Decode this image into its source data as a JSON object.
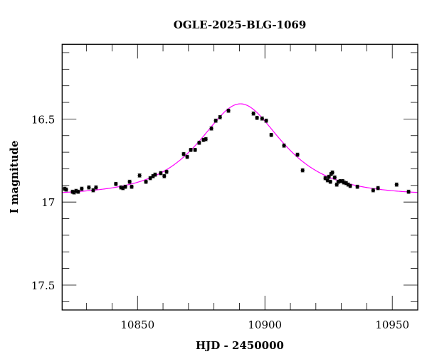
{
  "chart_data": {
    "type": "scatter",
    "title": "OGLE-2025-BLG-1069",
    "xlabel": "HJD - 2450000",
    "ylabel": "I magnitude",
    "xlim": [
      10820.4,
      10960
    ],
    "ylim": [
      16.05,
      17.65
    ],
    "y_inverted": true,
    "x_major_ticks": [
      10850,
      10900,
      10950
    ],
    "x_tick_labels": [
      "10850",
      "10900",
      "10950"
    ],
    "x_minor_step": 10,
    "y_major_ticks": [
      16.5,
      17,
      17.5
    ],
    "y_tick_labels": [
      "16.5",
      "17",
      "17.5"
    ],
    "y_minor_step": 0.1,
    "grid": false,
    "colors": {
      "points": "#000000",
      "model": "#ff00ff"
    },
    "model": {
      "type": "point-lens",
      "t0": 10890.4,
      "u0": 0.71,
      "tE": 23.6,
      "I_base": 16.96
    },
    "points": {
      "x": [
        10821.4,
        10822.0,
        10824.5,
        10825.1,
        10825.9,
        10826.7,
        10828.1,
        10830.9,
        10832.6,
        10833.7,
        10841.5,
        10843.5,
        10844.3,
        10845.2,
        10846.9,
        10847.7,
        10850.8,
        10853.3,
        10855.0,
        10856.1,
        10856.9,
        10859.1,
        10860.5,
        10861.4,
        10868.1,
        10869.5,
        10870.9,
        10872.6,
        10874.2,
        10875.9,
        10876.8,
        10879.0,
        10880.7,
        10882.4,
        10885.7,
        10895.5,
        10896.9,
        10898.9,
        10900.5,
        10902.5,
        10907.5,
        10912.8,
        10914.8,
        10923.7,
        10924.6,
        10925.1,
        10925.7,
        10926.0,
        10926.5,
        10927.4,
        10928.2,
        10928.8,
        10929.6,
        10930.5,
        10931.0,
        10931.9,
        10932.7,
        10933.5,
        10936.3,
        10942.5,
        10944.4,
        10951.7,
        10956.4
      ],
      "y": [
        16.92,
        16.925,
        16.938,
        16.942,
        16.933,
        16.938,
        16.92,
        16.912,
        16.929,
        16.912,
        16.891,
        16.912,
        16.916,
        16.908,
        16.878,
        16.908,
        16.84,
        16.878,
        16.856,
        16.844,
        16.835,
        16.826,
        16.844,
        16.818,
        16.711,
        16.728,
        16.686,
        16.686,
        16.643,
        16.626,
        16.621,
        16.557,
        16.51,
        16.489,
        16.45,
        16.467,
        16.493,
        16.497,
        16.51,
        16.596,
        16.66,
        16.715,
        16.809,
        16.856,
        16.869,
        16.848,
        16.878,
        16.831,
        16.822,
        16.852,
        16.895,
        16.878,
        16.874,
        16.874,
        16.882,
        16.886,
        16.895,
        16.903,
        16.908,
        16.929,
        16.916,
        16.895,
        16.938
      ],
      "err": 0.01
    }
  }
}
